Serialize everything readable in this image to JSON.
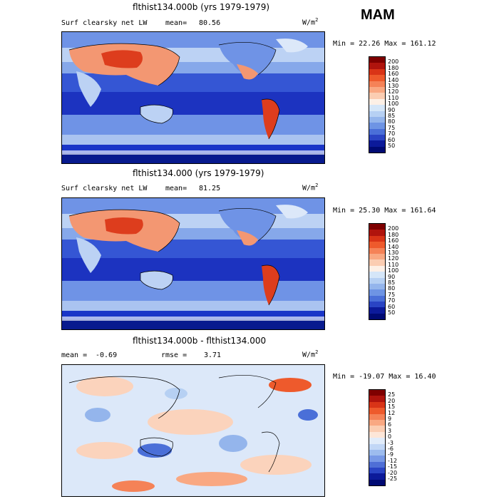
{
  "season": "MAM",
  "panels": [
    {
      "title": "flthist134.000b (yrs 1979-1979)",
      "left_label": "Surf clearsky net LW",
      "stat1_label": "mean=",
      "stat1_value": "80.56",
      "units": "W/m",
      "units_exp": "2",
      "minmax": "Min =  22.26 Max = 161.12",
      "colorbar": [
        "200",
        "180",
        "160",
        "140",
        "130",
        "120",
        "110",
        "100",
        "90",
        "85",
        "80",
        "75",
        "70",
        "60",
        "50"
      ]
    },
    {
      "title": "flthist134.000 (yrs 1979-1979)",
      "left_label": "Surf clearsky net LW",
      "stat1_label": "mean=",
      "stat1_value": "81.25",
      "units": "W/m",
      "units_exp": "2",
      "minmax": "Min =  25.30 Max = 161.64",
      "colorbar": [
        "200",
        "180",
        "160",
        "140",
        "130",
        "120",
        "110",
        "100",
        "90",
        "85",
        "80",
        "75",
        "70",
        "60",
        "50"
      ]
    },
    {
      "title": "flthist134.000b - flthist134.000",
      "left_label": "mean =",
      "left_value": "-0.69",
      "stat1_label": "rmse =",
      "stat1_value": "3.71",
      "units": "W/m",
      "units_exp": "2",
      "minmax": "Min = -19.07 Max =  16.40",
      "colorbar": [
        "25",
        "20",
        "15",
        "12",
        "9",
        "6",
        "3",
        "0",
        "-3",
        "-6",
        "-9",
        "-12",
        "-15",
        "-20",
        "-25"
      ]
    }
  ],
  "colors": {
    "abs_scale": [
      "#7f0000",
      "#b0140d",
      "#d93417",
      "#ee5a2c",
      "#f58257",
      "#f9a882",
      "#fbcdb2",
      "#fdf0e6",
      "#d5e6f8",
      "#b6d0f3",
      "#94b5ec",
      "#6e94e4",
      "#4a6fd8",
      "#2a44c4",
      "#0c1a9a",
      "#000a73"
    ],
    "diff_scale": [
      "#7f0000",
      "#b0140d",
      "#d93417",
      "#ee5a2c",
      "#f58257",
      "#f9a882",
      "#fbcdb2",
      "#fde6d8",
      "#e1ecfa",
      "#c2d7f6",
      "#9dbcee",
      "#7899e6",
      "#4f6fd6",
      "#2a44c4",
      "#0c1a9a",
      "#000a73"
    ],
    "ocean_deep": "#1a3ad0",
    "ocean_mid": "#5f86e4",
    "ocean_light": "#b9d0f4",
    "warm_land": "#f39772",
    "hot_land": "#dd3d1d",
    "diff_bg": "#dce8f9",
    "diff_warm": "#fbd3bc"
  }
}
